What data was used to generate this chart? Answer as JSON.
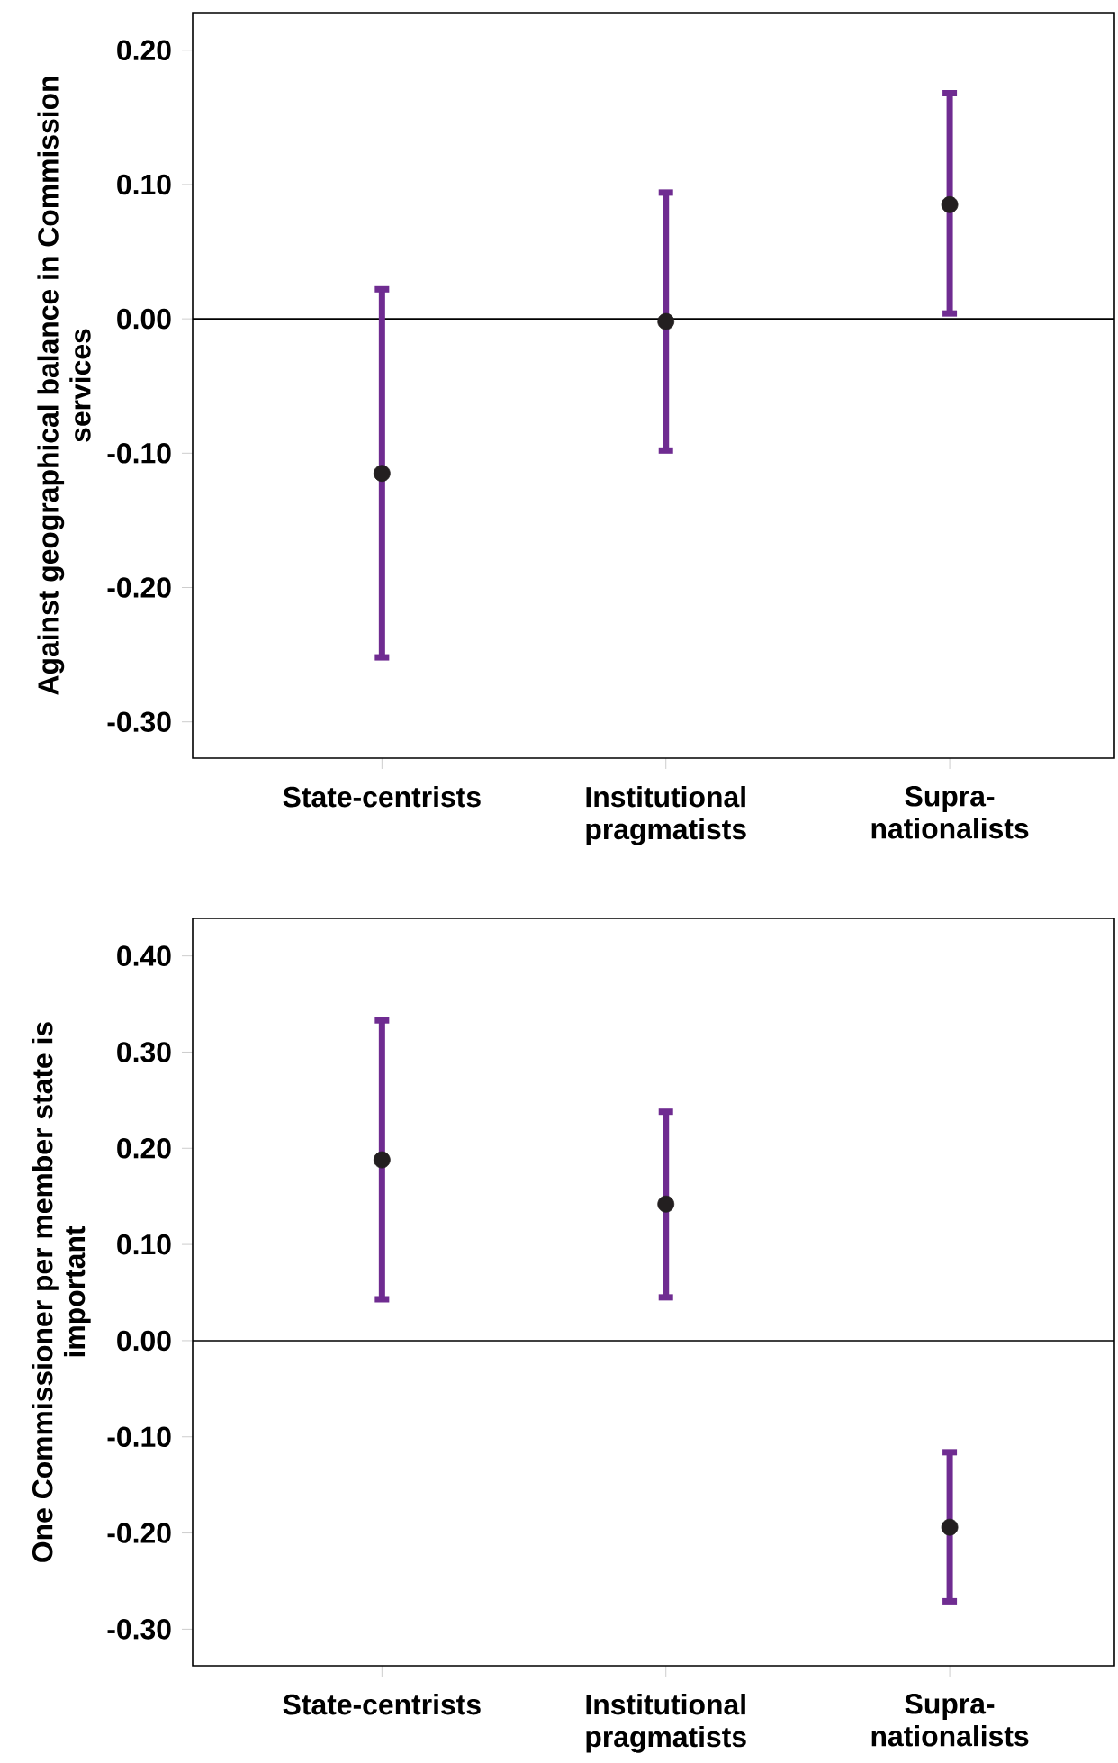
{
  "chart_data": [
    {
      "type": "scatter",
      "ylabel": "Against geographical balance in Commission services",
      "categories": [
        "State-centrists",
        "Institutional pragmatists",
        "Supra-nationalists"
      ],
      "series": [
        {
          "color": "#231f20",
          "values": [
            -0.115,
            -0.002,
            0.085
          ],
          "errors": [
            [
              -0.252,
              0.022
            ],
            [
              -0.098,
              0.094
            ],
            [
              0.004,
              0.168
            ]
          ]
        }
      ],
      "marker": "circle",
      "ylim": [
        -0.327,
        0.228
      ],
      "yticks": [
        {
          "value": -0.3,
          "label": "-0.30"
        },
        {
          "value": -0.2,
          "label": "-0.20"
        },
        {
          "value": -0.1,
          "label": "-0.10"
        },
        {
          "value": 0,
          "label": "0.00"
        },
        {
          "value": 0.1,
          "label": "0.10"
        },
        {
          "value": 0.2,
          "label": "0.20"
        }
      ],
      "ref_lines": [
        {
          "axis": "y",
          "value": 0,
          "color": "#000000"
        }
      ]
    },
    {
      "type": "scatter",
      "ylabel": "One Commissioner per member state is important",
      "categories": [
        "State-centrists",
        "Institutional pragmatists",
        "Supra-nationalists"
      ],
      "series": [
        {
          "color": "#231f20",
          "values": [
            0.188,
            0.142,
            -0.194
          ],
          "errors": [
            [
              0.043,
              0.333
            ],
            [
              0.045,
              0.238
            ],
            [
              -0.271,
              -0.116
            ]
          ]
        }
      ],
      "marker": "circle",
      "ylim": [
        -0.338,
        0.439
      ],
      "yticks": [
        {
          "value": -0.3,
          "label": "-0.30"
        },
        {
          "value": -0.2,
          "label": "-0.20"
        },
        {
          "value": -0.1,
          "label": "-0.10"
        },
        {
          "value": 0,
          "label": "0.00"
        },
        {
          "value": 0.1,
          "label": "0.10"
        },
        {
          "value": 0.2,
          "label": "0.20"
        },
        {
          "value": 0.3,
          "label": "0.30"
        },
        {
          "value": 0.4,
          "label": "0.40"
        }
      ],
      "ref_lines": [
        {
          "axis": "y",
          "value": 0,
          "color": "#000000"
        }
      ]
    }
  ]
}
